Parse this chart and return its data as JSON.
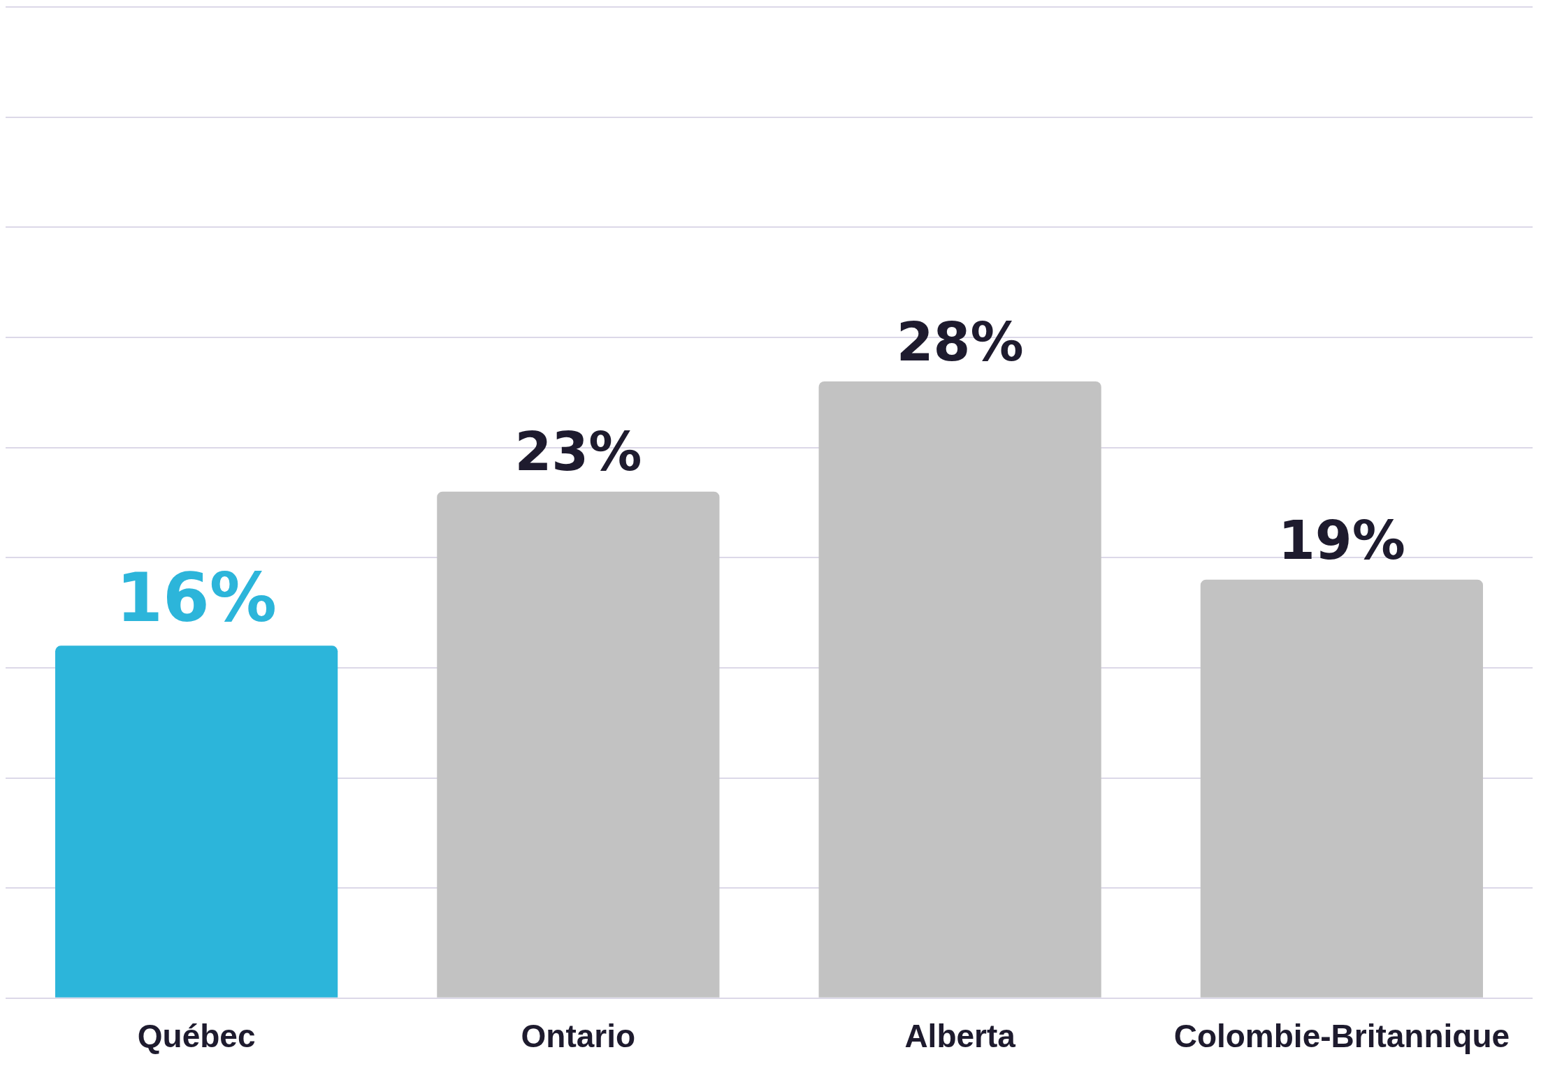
{
  "chart_data": {
    "type": "bar",
    "categories": [
      "Québec",
      "Ontario",
      "Alberta",
      "Colombie-Britannique"
    ],
    "values": [
      16,
      23,
      28,
      19
    ],
    "colors": [
      "#2cb5da",
      "#c2c2c2",
      "#c2c2c2",
      "#c2c2c2"
    ],
    "ylim": [
      0,
      45
    ],
    "yticks": [
      {
        "value": 0,
        "label": null
      },
      {
        "value": 5,
        "label": null
      },
      {
        "value": 10,
        "label": null
      },
      {
        "value": 15,
        "label": null
      },
      {
        "value": 20,
        "label": null
      },
      {
        "value": 25,
        "label": null
      },
      {
        "value": 30,
        "label": null
      },
      {
        "value": 35,
        "label": null
      },
      {
        "value": 40,
        "label": null
      },
      {
        "value": 45,
        "label": null
      }
    ],
    "value_labels": [
      "16%",
      "23%",
      "28%",
      "19%"
    ],
    "grid": "y",
    "tick_labels": "x",
    "legend": false
  }
}
